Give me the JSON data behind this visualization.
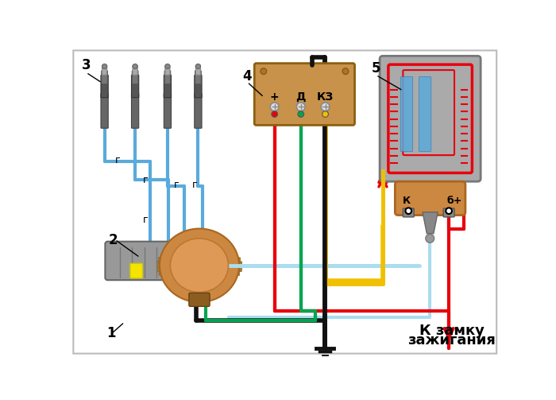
{
  "bg_color": "#ffffff",
  "fig_width": 7.0,
  "fig_height": 5.03,
  "labels": {
    "num1": "1",
    "num2": "2",
    "num3": "3",
    "num4": "4",
    "num5": "5",
    "k_label": "К",
    "bplus_label": "б+",
    "plus_label": "+",
    "d_label": "Д",
    "kz_label": "КЗ",
    "r_label": "г",
    "lock_text1": "К замку",
    "lock_text2": "зажигания"
  },
  "wire_colors": {
    "red": "#e8000d",
    "green": "#00a550",
    "yellow": "#f0c000",
    "black": "#111111",
    "blue": "#5aaadc",
    "light_blue": "#aaddee"
  }
}
